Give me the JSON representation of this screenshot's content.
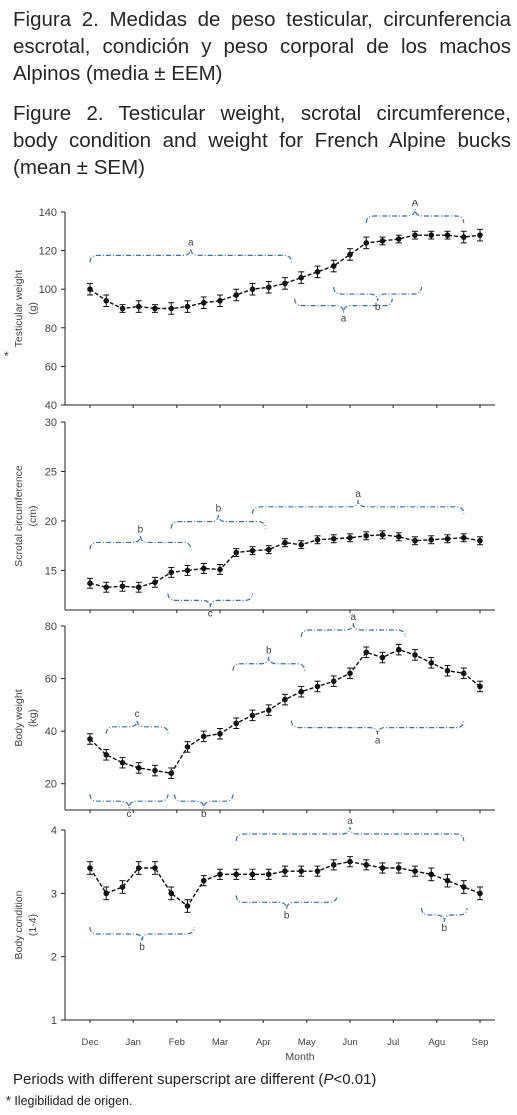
{
  "caption_es": "Figura 2. Medidas de peso testicular, circunferencia escrotal, condición y peso corporal de los machos Alpinos (media ± EEM)",
  "caption_en": "Figure 2. Testicular weight, scrotal circumference, body condition and weight for French Alpine bucks (mean ± SEM)",
  "footnote": "Periods with different superscript are different (P<0.01)",
  "footnote_parts": {
    "pre": "Periods with different superscript are different (",
    "p": "P",
    "post": "<0.01)"
  },
  "legibility_note": "* Ilegibilidad de origen.",
  "asterisk": "*",
  "colors": {
    "line": "#111111",
    "brace": "#3a6fb0",
    "axis": "#222222"
  },
  "chart_data": [
    {
      "type": "line",
      "ylabel": "Testicular weight",
      "yunit": "(g)",
      "y_ticks": [
        "40",
        "60",
        "80",
        "100",
        "120",
        "140"
      ],
      "ylim": [
        40,
        140
      ],
      "x": [
        0,
        0.5,
        1,
        1.5,
        2,
        2.5,
        3,
        3.5,
        4,
        4.5,
        5,
        5.5,
        6,
        6.5,
        7,
        7.5,
        8,
        8.5,
        9,
        9.5,
        10,
        10.5,
        11,
        11.5,
        12
      ],
      "values": [
        100,
        94,
        90,
        91,
        90,
        90,
        91,
        93,
        94,
        97,
        100,
        101,
        103,
        106,
        109,
        112,
        118,
        124,
        125,
        126,
        128,
        128,
        128,
        127,
        128
      ],
      "errors": [
        3,
        3,
        2,
        3,
        2,
        3,
        3,
        3,
        3,
        3,
        3,
        3,
        3,
        3,
        3,
        3,
        3,
        3,
        2,
        2,
        2,
        2,
        2,
        3,
        3
      ],
      "braces": [
        {
          "label": "a",
          "x1": 0,
          "x2": 6.2,
          "side": "up"
        },
        {
          "label": "a",
          "x1": 6.3,
          "x2": 9.3,
          "side": "down"
        },
        {
          "label": "b",
          "x1": 7.5,
          "x2": 10.2,
          "side": "down"
        },
        {
          "label": "A",
          "x1": 8.5,
          "x2": 11.5,
          "side": "up"
        }
      ]
    },
    {
      "type": "line",
      "ylabel": "Scrotal circumference",
      "yunit": "(cm)",
      "y_ticks": [
        "15",
        "20",
        "25",
        "30"
      ],
      "ylim": [
        11,
        30
      ],
      "x": [
        0,
        0.5,
        1,
        1.5,
        2,
        2.5,
        3,
        3.5,
        4,
        4.5,
        5,
        5.5,
        6,
        6.5,
        7,
        7.5,
        8,
        8.5,
        9,
        9.5,
        10,
        10.5,
        11,
        11.5,
        12
      ],
      "values": [
        13.7,
        13.3,
        13.4,
        13.3,
        13.8,
        14.8,
        15.0,
        15.2,
        15.1,
        16.8,
        17.0,
        17.1,
        17.8,
        17.6,
        18.1,
        18.2,
        18.3,
        18.5,
        18.6,
        18.4,
        18.0,
        18.1,
        18.2,
        18.3,
        18.0
      ],
      "errors": [
        0.5,
        0.5,
        0.5,
        0.5,
        0.5,
        0.5,
        0.5,
        0.5,
        0.5,
        0.4,
        0.4,
        0.4,
        0.4,
        0.4,
        0.4,
        0.4,
        0.4,
        0.4,
        0.4,
        0.4,
        0.4,
        0.4,
        0.4,
        0.4,
        0.4
      ],
      "braces": [
        {
          "label": "b",
          "x1": 0,
          "x2": 3.1,
          "side": "up"
        },
        {
          "label": "b",
          "x1": 2.5,
          "x2": 5.4,
          "side": "up"
        },
        {
          "label": "c",
          "x1": 2.4,
          "x2": 5.0,
          "side": "down"
        },
        {
          "label": "a",
          "x1": 5.0,
          "x2": 11.5,
          "side": "up"
        }
      ]
    },
    {
      "type": "line",
      "ylabel": "Body weight",
      "yunit": "(kg)",
      "y_ticks": [
        "20",
        "40",
        "60",
        "80"
      ],
      "ylim": [
        10,
        80
      ],
      "x": [
        0,
        0.5,
        1,
        1.5,
        2,
        2.5,
        3,
        3.5,
        4,
        4.5,
        5,
        5.5,
        6,
        6.5,
        7,
        7.5,
        8,
        8.5,
        9,
        9.5,
        10,
        10.5,
        11,
        11.5,
        12
      ],
      "values": [
        37,
        31,
        28,
        26,
        25,
        24,
        34,
        38,
        39,
        43,
        46,
        48,
        52,
        55,
        57,
        59,
        62,
        70,
        68,
        71,
        69,
        66,
        63,
        62,
        57
      ],
      "errors": [
        2,
        2,
        2,
        2,
        2,
        2,
        2,
        2,
        2,
        2,
        2,
        2,
        2,
        2,
        2,
        2,
        2,
        2,
        2,
        2,
        2,
        2,
        2,
        2,
        2
      ],
      "braces": [
        {
          "label": "c",
          "x1": 0,
          "x2": 2.4,
          "side": "down"
        },
        {
          "label": "c",
          "x1": 0.5,
          "x2": 2.4,
          "side": "up"
        },
        {
          "label": "b",
          "x1": 2.6,
          "x2": 4.4,
          "side": "down"
        },
        {
          "label": "b",
          "x1": 4.4,
          "x2": 6.6,
          "side": "up"
        },
        {
          "label": "a",
          "x1": 6.5,
          "x2": 9.7,
          "side": "up"
        },
        {
          "label": "a",
          "x1": 6.2,
          "x2": 11.5,
          "side": "down"
        }
      ]
    },
    {
      "type": "line",
      "ylabel": "Body condition",
      "yunit": "(1-4)",
      "y_ticks": [
        "1",
        "2",
        "3",
        "4"
      ],
      "ylim": [
        1,
        4
      ],
      "x": [
        0,
        0.5,
        1,
        1.5,
        2,
        2.5,
        3,
        3.5,
        4,
        4.5,
        5,
        5.5,
        6,
        6.5,
        7,
        7.5,
        8,
        8.5,
        9,
        9.5,
        10,
        10.5,
        11,
        11.5,
        12
      ],
      "values": [
        3.4,
        3.0,
        3.1,
        3.4,
        3.4,
        3.0,
        2.8,
        3.2,
        3.3,
        3.3,
        3.3,
        3.3,
        3.35,
        3.35,
        3.35,
        3.45,
        3.5,
        3.45,
        3.4,
        3.4,
        3.35,
        3.3,
        3.2,
        3.1,
        3.0
      ],
      "errors": [
        0.1,
        0.1,
        0.1,
        0.1,
        0.1,
        0.1,
        0.1,
        0.08,
        0.08,
        0.08,
        0.08,
        0.08,
        0.08,
        0.08,
        0.08,
        0.08,
        0.08,
        0.08,
        0.08,
        0.08,
        0.08,
        0.1,
        0.1,
        0.1,
        0.1
      ],
      "braces": [
        {
          "label": "b",
          "x1": 0,
          "x2": 3.2,
          "side": "down"
        },
        {
          "label": "a",
          "x1": 4.5,
          "x2": 11.5,
          "side": "up"
        },
        {
          "label": "b",
          "x1": 4.5,
          "x2": 7.6,
          "side": "down"
        },
        {
          "label": "b",
          "x1": 10.2,
          "x2": 11.6,
          "side": "down"
        }
      ]
    }
  ],
  "x_axis": {
    "label": "Month",
    "months": [
      "Dec",
      "Jan",
      "Feb",
      "Mar",
      "Apr",
      "May",
      "Jun",
      "Jul",
      "Agu",
      "Sep"
    ],
    "month_positions": [
      0,
      1.33,
      2.67,
      4.0,
      5.33,
      6.67,
      8.0,
      9.33,
      10.67,
      12.0
    ]
  }
}
